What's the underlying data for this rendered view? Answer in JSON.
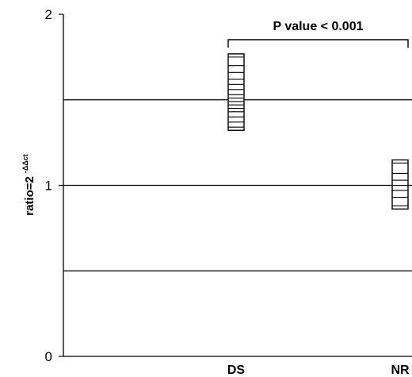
{
  "chart_data": {
    "type": "scatter",
    "ylabel": "ratio=2",
    "ylabel_superscript": "-ΔΔct",
    "ylim": [
      0,
      2
    ],
    "yticks": [
      "0",
      "1",
      "2"
    ],
    "gridlines_y": [
      0.5,
      1,
      1.5
    ],
    "grid": true,
    "categories": [
      "DS",
      "NR"
    ],
    "series": [
      {
        "category": "DS",
        "values": [
          1.34,
          1.37,
          1.4,
          1.43,
          1.45,
          1.47,
          1.49,
          1.51,
          1.53,
          1.56,
          1.59,
          1.62,
          1.66,
          1.7,
          1.75
        ]
      },
      {
        "category": "NR",
        "values": [
          0.88,
          0.93,
          0.97,
          1.0,
          1.03,
          1.07,
          1.13
        ]
      }
    ],
    "annotation": {
      "text": "P value < 0.001",
      "between": [
        "DS",
        "NR"
      ]
    }
  }
}
